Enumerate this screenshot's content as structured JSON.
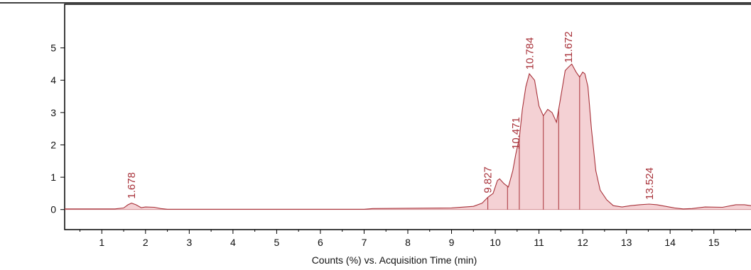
{
  "colors": {
    "trace": "#a8323a",
    "fill": "#f2c9cc",
    "axis": "#000000"
  },
  "chart_data": {
    "type": "area",
    "title": "",
    "xlabel": "Counts (%) vs. Acquisition Time (min)",
    "ylabel": "",
    "xlim": [
      0.15,
      15.85
    ],
    "ylim": [
      -0.62,
      6.35
    ],
    "x_ticks": [
      1,
      2,
      3,
      4,
      5,
      6,
      7,
      8,
      9,
      10,
      11,
      12,
      13,
      14,
      15
    ],
    "y_ticks": [
      0,
      1,
      2,
      3,
      4,
      5
    ],
    "grid": false,
    "series": [
      {
        "points": [
          [
            0.15,
            0.02
          ],
          [
            1.3,
            0.02
          ],
          [
            1.5,
            0.05
          ],
          [
            1.6,
            0.15
          ],
          [
            1.68,
            0.2
          ],
          [
            1.78,
            0.15
          ],
          [
            1.9,
            0.06
          ],
          [
            2.0,
            0.08
          ],
          [
            2.2,
            0.07
          ],
          [
            2.35,
            0.03
          ],
          [
            2.5,
            0.01
          ],
          [
            7.0,
            0.01
          ],
          [
            7.2,
            0.03
          ],
          [
            9.0,
            0.05
          ],
          [
            9.5,
            0.1
          ],
          [
            9.7,
            0.2
          ],
          [
            9.83,
            0.38
          ],
          [
            9.95,
            0.5
          ],
          [
            10.05,
            0.9
          ],
          [
            10.1,
            0.95
          ],
          [
            10.2,
            0.8
          ],
          [
            10.3,
            0.7
          ],
          [
            10.4,
            1.2
          ],
          [
            10.47,
            1.72
          ],
          [
            10.55,
            2.2
          ],
          [
            10.62,
            3.1
          ],
          [
            10.7,
            3.8
          ],
          [
            10.78,
            4.2
          ],
          [
            10.9,
            4.0
          ],
          [
            11.0,
            3.2
          ],
          [
            11.1,
            2.9
          ],
          [
            11.2,
            3.1
          ],
          [
            11.3,
            3.0
          ],
          [
            11.4,
            2.7
          ],
          [
            11.5,
            3.5
          ],
          [
            11.6,
            4.3
          ],
          [
            11.67,
            4.4
          ],
          [
            11.75,
            4.5
          ],
          [
            11.85,
            4.25
          ],
          [
            11.93,
            4.1
          ],
          [
            12.0,
            4.25
          ],
          [
            12.05,
            4.2
          ],
          [
            12.12,
            3.8
          ],
          [
            12.2,
            2.5
          ],
          [
            12.3,
            1.2
          ],
          [
            12.4,
            0.6
          ],
          [
            12.55,
            0.3
          ],
          [
            12.7,
            0.12
          ],
          [
            12.9,
            0.08
          ],
          [
            13.1,
            0.12
          ],
          [
            13.3,
            0.15
          ],
          [
            13.52,
            0.17
          ],
          [
            13.7,
            0.15
          ],
          [
            13.9,
            0.1
          ],
          [
            14.1,
            0.05
          ],
          [
            14.3,
            0.02
          ],
          [
            14.5,
            0.03
          ],
          [
            14.8,
            0.08
          ],
          [
            15.2,
            0.07
          ],
          [
            15.5,
            0.15
          ],
          [
            15.7,
            0.15
          ],
          [
            15.85,
            0.12
          ]
        ]
      }
    ],
    "peaks": [
      {
        "label": "1.678",
        "x": 1.678
      },
      {
        "label": "9.827",
        "x": 9.827
      },
      {
        "label": "10.471",
        "x": 10.471
      },
      {
        "label": "10.784",
        "x": 10.784
      },
      {
        "label": "11.672",
        "x": 11.672
      },
      {
        "label": "13.524",
        "x": 13.524
      }
    ],
    "integration_splits": [
      9.83,
      10.28,
      10.55,
      11.1,
      11.45,
      11.93
    ]
  }
}
